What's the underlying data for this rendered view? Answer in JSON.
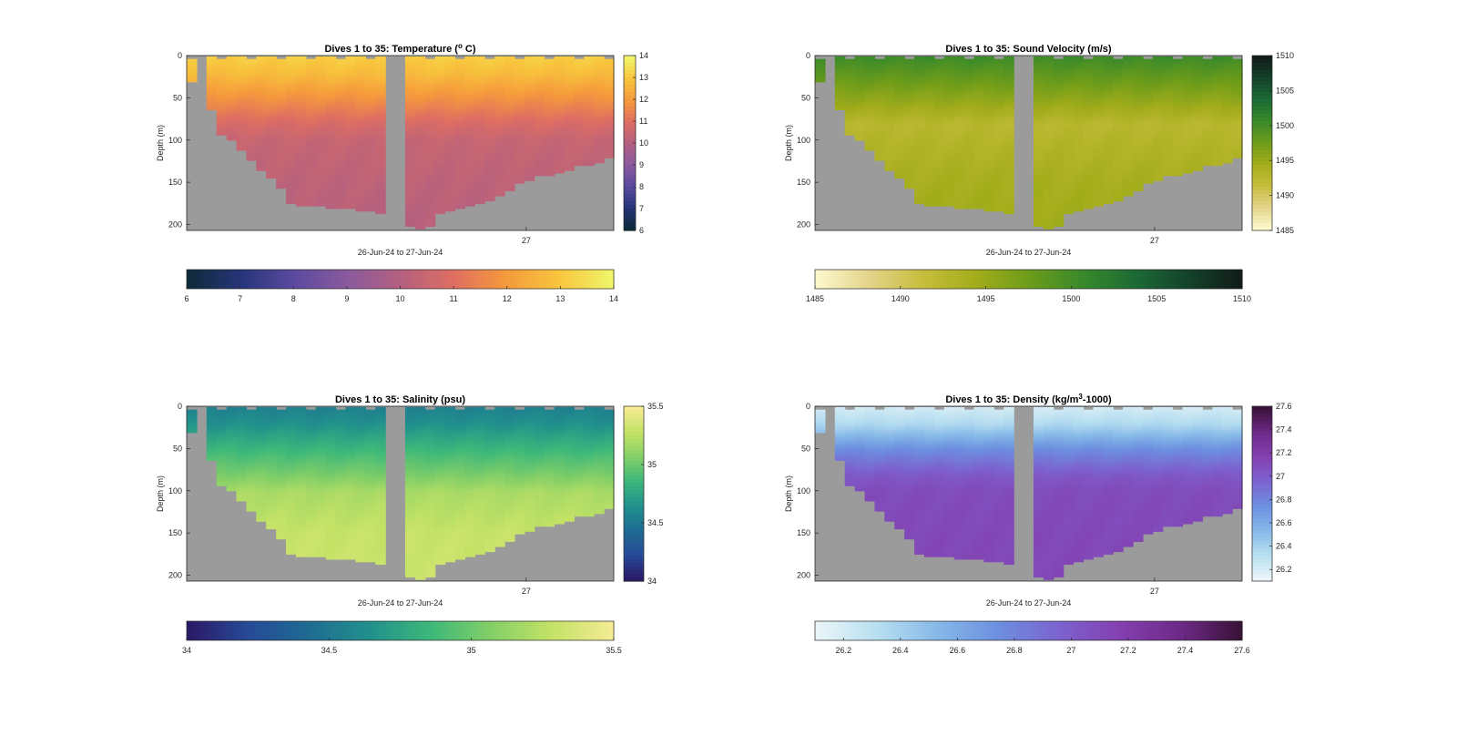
{
  "figure": {
    "panels": [
      {
        "id": "temperature",
        "title": "Dives 1 to 35: Temperature (",
        "title_unit_sup": "o",
        "title_tail": " C)",
        "ylabel": "Depth (m)",
        "xlabel": "26-Jun-24 to 27-Jun-24",
        "x_tick": "27",
        "y_ticks": [
          "0",
          "50",
          "100",
          "150",
          "200"
        ],
        "colorbar_ticks_right": [
          "14",
          "13",
          "12",
          "11",
          "10",
          "9",
          "8",
          "7",
          "6"
        ],
        "colorbar_ticks_bottom": [
          "6",
          "7",
          "8",
          "9",
          "10",
          "11",
          "12",
          "13",
          "14"
        ],
        "colormap": [
          "#0f2a3a",
          "#27357a",
          "#5c4aa0",
          "#8a5a9e",
          "#b4607f",
          "#df6e62",
          "#f59a3c",
          "#f8c53d",
          "#f0f56a"
        ],
        "surface_color": "#f7a943",
        "deep_color": "#c06381"
      },
      {
        "id": "sound_velocity",
        "title": "Dives 1 to 35: Sound Velocity (m/s)",
        "ylabel": "Depth (m)",
        "xlabel": "26-Jun-24 to 27-Jun-24",
        "x_tick": "27",
        "y_ticks": [
          "0",
          "50",
          "100",
          "150",
          "200"
        ],
        "colorbar_ticks_right": [
          "1510",
          "1505",
          "1500",
          "1495",
          "1490",
          "1485"
        ],
        "colorbar_ticks_bottom": [
          "1485",
          "1490",
          "1495",
          "1500",
          "1505",
          "1510"
        ],
        "colormap": [
          "#fdf8cc",
          "#e3d38a",
          "#c7bd3c",
          "#a3ad1b",
          "#6d9c1a",
          "#3a8a2a",
          "#1c6b35",
          "#14432c",
          "#111c18"
        ],
        "surface_color": "#4f9528",
        "deep_color": "#a6ad1c"
      },
      {
        "id": "salinity",
        "title": "Dives 1 to 35: Salinity (psu)",
        "ylabel": "Depth (m)",
        "xlabel": "26-Jun-24 to 27-Jun-24",
        "x_tick": "27",
        "y_ticks": [
          "0",
          "50",
          "100",
          "150",
          "200"
        ],
        "colorbar_ticks_right": [
          "35.5",
          "35",
          "34.5",
          "34"
        ],
        "colorbar_ticks_bottom": [
          "34",
          "34.5",
          "35",
          "35.5"
        ],
        "colormap": [
          "#2b1a68",
          "#264a97",
          "#1f6c93",
          "#21908c",
          "#3db87a",
          "#83cf67",
          "#c4e266",
          "#f4eb94"
        ],
        "surface_color": "#1f6792",
        "deep_color": "#d4e767"
      },
      {
        "id": "density",
        "title": "Dives 1 to 35: Density (kg/m",
        "title_unit_sup": "3",
        "title_tail": "-1000)",
        "ylabel": "Depth (m)",
        "xlabel": "26-Jun-24 to 27-Jun-24",
        "x_tick": "27",
        "y_ticks": [
          "0",
          "50",
          "100",
          "150",
          "200"
        ],
        "colorbar_ticks_right": [
          "27.6",
          "27.4",
          "27.2",
          "27",
          "26.8",
          "26.6",
          "26.4",
          "26.2"
        ],
        "colorbar_ticks_bottom": [
          "26.2",
          "26.4",
          "26.6",
          "26.8",
          "27",
          "27.2",
          "27.4",
          "27.6"
        ],
        "colormap": [
          "#e9f5f8",
          "#b8dff0",
          "#86b8e8",
          "#6c8fdf",
          "#7c63cf",
          "#8440b0",
          "#6e2a88",
          "#3a1238"
        ],
        "surface_color": "#cfe9f4",
        "deep_color": "#7a3ab4"
      }
    ]
  },
  "chart_data": [
    {
      "type": "heatmap",
      "title": "Dives 1 to 35: Temperature (o C)",
      "xlabel": "26-Jun-24 to 27-Jun-24",
      "ylabel": "Depth (m)",
      "ylim": [
        0,
        207
      ],
      "colorbar_range": [
        6,
        14
      ],
      "profile": {
        "depth": [
          0,
          20,
          50,
          80,
          100,
          150,
          200
        ],
        "value": [
          13.2,
          12.8,
          11.8,
          10.8,
          10.4,
          10.2,
          10.1
        ]
      }
    },
    {
      "type": "heatmap",
      "title": "Dives 1 to 35: Sound Velocity (m/s)",
      "xlabel": "26-Jun-24 to 27-Jun-24",
      "ylabel": "Depth (m)",
      "ylim": [
        0,
        207
      ],
      "colorbar_range": [
        1485,
        1510
      ],
      "profile": {
        "depth": [
          0,
          20,
          50,
          80,
          100,
          150,
          200
        ],
        "value": [
          1500.5,
          1498.5,
          1495.5,
          1492.5,
          1493.0,
          1494.0,
          1494.5
        ]
      }
    },
    {
      "type": "heatmap",
      "title": "Dives 1 to 35: Salinity (psu)",
      "xlabel": "26-Jun-24 to 27-Jun-24",
      "ylabel": "Depth (m)",
      "ylim": [
        0,
        207
      ],
      "colorbar_range": [
        34,
        35.5
      ],
      "profile": {
        "depth": [
          0,
          20,
          50,
          80,
          100,
          150,
          200
        ],
        "value": [
          34.55,
          34.65,
          34.85,
          35.05,
          35.2,
          35.3,
          35.32
        ]
      }
    },
    {
      "type": "heatmap",
      "title": "Dives 1 to 35: Density (kg/m3-1000)",
      "xlabel": "26-Jun-24 to 27-Jun-24",
      "ylabel": "Depth (m)",
      "ylim": [
        0,
        207
      ],
      "colorbar_range": [
        26.1,
        27.6
      ],
      "profile": {
        "depth": [
          0,
          20,
          50,
          80,
          100,
          150,
          200
        ],
        "value": [
          26.2,
          26.35,
          26.75,
          27.02,
          27.1,
          27.12,
          27.13
        ]
      }
    }
  ]
}
